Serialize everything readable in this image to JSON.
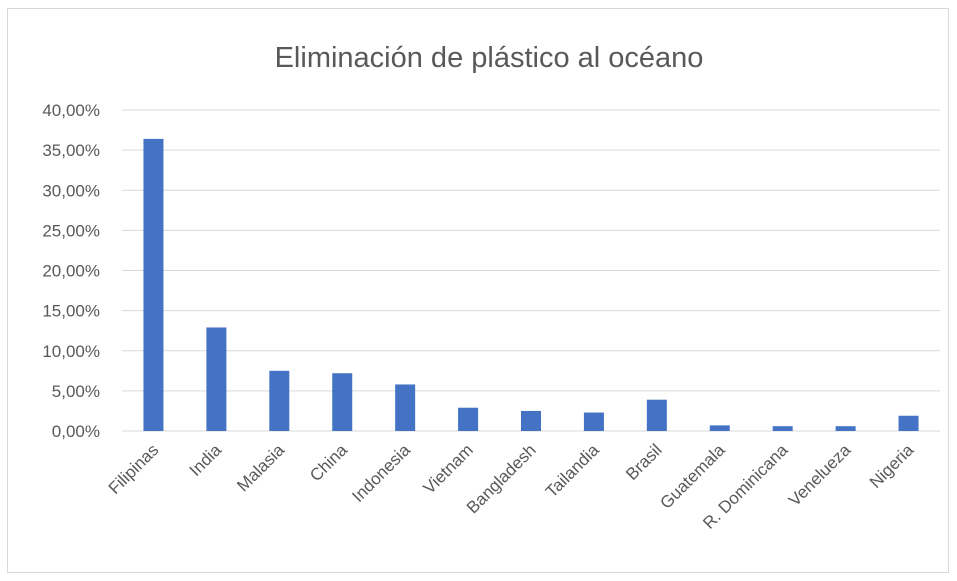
{
  "chart_data": {
    "type": "bar",
    "title": "Eliminación de plástico al océano",
    "xlabel": "",
    "ylabel": "",
    "categories": [
      "Filipinas",
      "India",
      "Malasia",
      "China",
      "Indonesia",
      "Vietnam",
      "Bangladesh",
      "Tailandia",
      "Brasil",
      "Guatemala",
      "R. Dominicana",
      "Venelueza",
      "Nigeria"
    ],
    "values": [
      36.4,
      12.9,
      7.5,
      7.2,
      5.8,
      2.9,
      2.5,
      2.3,
      3.9,
      0.7,
      0.6,
      0.6,
      1.9
    ],
    "ylim": [
      0,
      40
    ],
    "y_ticks": [
      "0,00%",
      "5,00%",
      "10,00%",
      "15,00%",
      "20,00%",
      "25,00%",
      "30,00%",
      "35,00%",
      "40,00%"
    ],
    "grid": true,
    "legend": "none",
    "bar_color": "#4472c4",
    "grid_color": "#d9d9d9"
  }
}
